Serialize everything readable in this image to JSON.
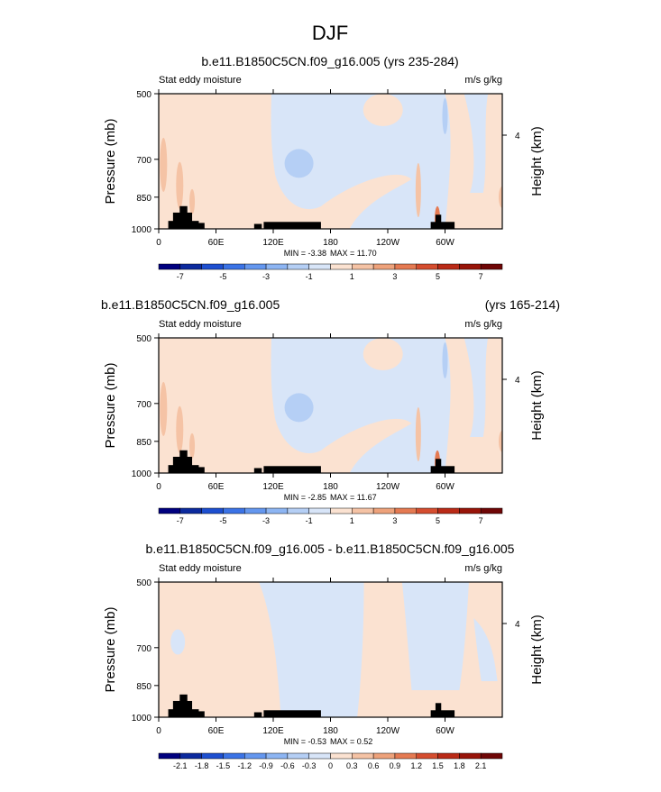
{
  "figure": {
    "title": "DJF"
  },
  "chart_data": [
    {
      "type": "heatmap",
      "title_center": "b.e11.B1850C5CN.f09_g16.005 (yrs 235-284)",
      "title_left": "",
      "title_right": "",
      "variable_label": "Stat eddy moisture",
      "units_label": "m/s g/kg",
      "ylabel": "Pressure (mb)",
      "ylabel_right": "Height (km)",
      "y_ticks": [
        "500",
        "700",
        "850",
        "1000"
      ],
      "y_tick_values": [
        500,
        700,
        850,
        1000
      ],
      "y_right_ticks": [
        "4"
      ],
      "x_ticks": [
        "0",
        "60E",
        "120E",
        "180",
        "120W",
        "60W"
      ],
      "x_tick_values": [
        0,
        60,
        120,
        180,
        240,
        300
      ],
      "xlim": [
        0,
        360
      ],
      "ylim": [
        1000,
        500
      ],
      "min_label": "MIN = -3.38",
      "max_label": "MAX = 11.70",
      "colorbar_labels": [
        "-7",
        "-5",
        "-3",
        "-1",
        "1",
        "3",
        "5",
        "7"
      ],
      "colorbar_colors": [
        "#00007f",
        "#0c2a9e",
        "#1d4fd0",
        "#3b73e6",
        "#6497ef",
        "#8db5f3",
        "#b5cff5",
        "#d8e5f8",
        "#fbe2d1",
        "#f5c3a5",
        "#eea27b",
        "#e57a52",
        "#d54d2f",
        "#ba2a17",
        "#981409",
        "#6f0606"
      ],
      "field": {
        "background_value": 0.4,
        "features": [
          {
            "lon": 148,
            "p": 715,
            "value": -1.8,
            "desc": "blue cell"
          },
          {
            "lon": 5,
            "p": 700,
            "value": 1.6,
            "desc": "warm streaks"
          },
          {
            "lon": 25,
            "p": 810,
            "value": 1.8
          },
          {
            "lon": 292,
            "p": 960,
            "value": 5.5,
            "desc": "Andes maximum"
          }
        ],
        "negative_regions": [
          "120E-270W mid/upper troposphere",
          "270W-300W lower troposphere"
        ],
        "topography_blocks": [
          "10E-40E",
          "100E-170E",
          "285E-310E"
        ]
      }
    },
    {
      "type": "heatmap",
      "title_center": "",
      "title_left": "b.e11.B1850C5CN.f09_g16.005",
      "title_right": "(yrs 165-214)",
      "variable_label": "Stat eddy moisture",
      "units_label": "m/s g/kg",
      "ylabel": "Pressure (mb)",
      "ylabel_right": "Height (km)",
      "y_ticks": [
        "500",
        "700",
        "850",
        "1000"
      ],
      "y_tick_values": [
        500,
        700,
        850,
        1000
      ],
      "y_right_ticks": [
        "4"
      ],
      "x_ticks": [
        "0",
        "60E",
        "120E",
        "180",
        "120W",
        "60W"
      ],
      "x_tick_values": [
        0,
        60,
        120,
        180,
        240,
        300
      ],
      "xlim": [
        0,
        360
      ],
      "ylim": [
        1000,
        500
      ],
      "min_label": "MIN = -2.85",
      "max_label": "MAX = 11.67",
      "colorbar_labels": [
        "-7",
        "-5",
        "-3",
        "-1",
        "1",
        "3",
        "5",
        "7"
      ],
      "colorbar_colors": [
        "#00007f",
        "#0c2a9e",
        "#1d4fd0",
        "#3b73e6",
        "#6497ef",
        "#8db5f3",
        "#b5cff5",
        "#d8e5f8",
        "#fbe2d1",
        "#f5c3a5",
        "#eea27b",
        "#e57a52",
        "#d54d2f",
        "#ba2a17",
        "#981409",
        "#6f0606"
      ]
    },
    {
      "type": "heatmap",
      "title_center": "b.e11.B1850C5CN.f09_g16.005 - b.e11.B1850C5CN.f09_g16.005",
      "title_left": "",
      "title_right": "",
      "variable_label": "Stat eddy moisture",
      "units_label": "m/s g/kg",
      "ylabel": "Pressure (mb)",
      "ylabel_right": "Height (km)",
      "y_ticks": [
        "500",
        "700",
        "850",
        "1000"
      ],
      "y_tick_values": [
        500,
        700,
        850,
        1000
      ],
      "y_right_ticks": [
        "4"
      ],
      "x_ticks": [
        "0",
        "60E",
        "120E",
        "180",
        "120W",
        "60W"
      ],
      "x_tick_values": [
        0,
        60,
        120,
        180,
        240,
        300
      ],
      "xlim": [
        0,
        360
      ],
      "ylim": [
        1000,
        500
      ],
      "min_label": "MIN = -0.53",
      "max_label": "MAX = 0.52",
      "colorbar_labels": [
        "-2.1",
        "-1.8",
        "-1.5",
        "-1.2",
        "-0.9",
        "-0.6",
        "-0.3",
        "0",
        "0.3",
        "0.6",
        "0.9",
        "1.2",
        "1.5",
        "1.8",
        "2.1"
      ],
      "colorbar_colors": [
        "#00007f",
        "#0c2a9e",
        "#1d4fd0",
        "#3b73e6",
        "#6497ef",
        "#8db5f3",
        "#b5cff5",
        "#d8e5f8",
        "#fbe2d1",
        "#f5c3a5",
        "#eea27b",
        "#e57a52",
        "#d54d2f",
        "#ba2a17",
        "#981409",
        "#6f0606"
      ]
    }
  ],
  "palette": {
    "neg_light": "#d8e5f8",
    "neg_mid": "#b5cff5",
    "pos_light": "#fbe2d1",
    "pos_mid": "#f5c3a5",
    "pos_strong": "#e57a52",
    "topo": "#000000"
  }
}
